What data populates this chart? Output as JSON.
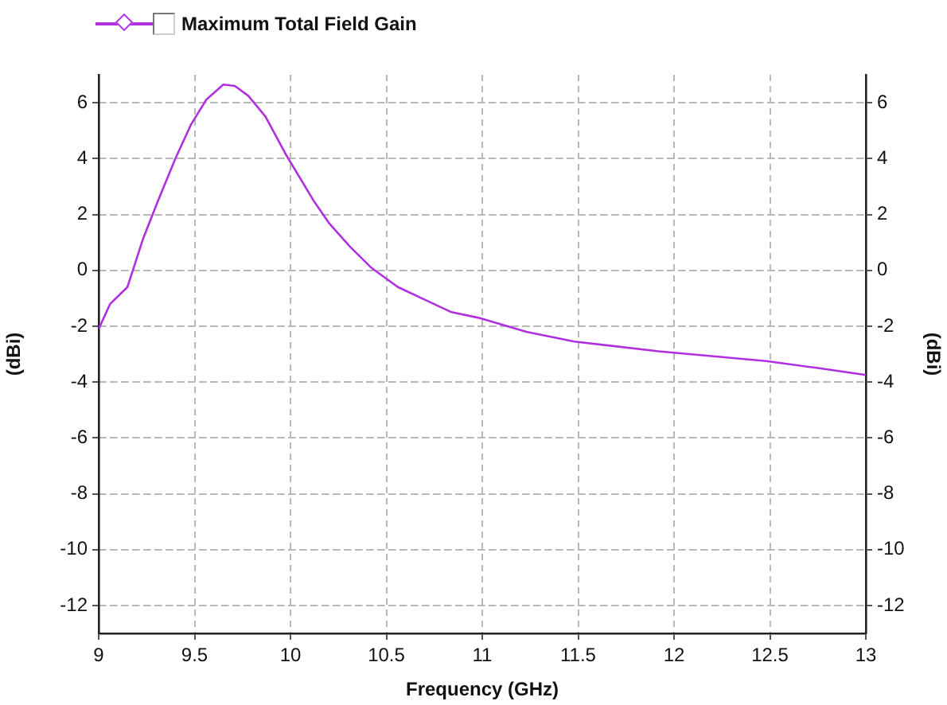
{
  "chart_data": {
    "type": "line",
    "xlabel": "Frequency (GHz)",
    "ylabel": "(dBi)",
    "y2label": "(dBi)",
    "series": [
      {
        "name": "Maximum Total Field Gain",
        "color": "#b030e0",
        "x": [
          9.0,
          9.06,
          9.15,
          9.23,
          9.31,
          9.4,
          9.48,
          9.56,
          9.65,
          9.71,
          9.78,
          9.87,
          9.98,
          10.12,
          10.2,
          10.31,
          10.42,
          10.56,
          10.7,
          10.84,
          10.98,
          11.23,
          11.48,
          11.92,
          12.48,
          12.75,
          12.95,
          13.0
        ],
        "values": [
          -2.1,
          -1.2,
          -0.6,
          1.1,
          2.5,
          4.0,
          5.2,
          6.1,
          6.65,
          6.6,
          6.25,
          5.5,
          4.1,
          2.5,
          1.7,
          0.85,
          0.1,
          -0.6,
          -1.05,
          -1.5,
          -1.7,
          -2.2,
          -2.55,
          -2.9,
          -3.25,
          -3.5,
          -3.7,
          -3.75
        ]
      }
    ],
    "xlim": [
      9,
      13
    ],
    "xticks": [
      9,
      9.5,
      10,
      10.5,
      11,
      11.5,
      12,
      12.5,
      13
    ],
    "ylim": [
      -13,
      7
    ],
    "yticks": [
      -12,
      -10,
      -8,
      -6,
      -4,
      -2,
      0,
      2,
      4,
      6
    ],
    "y2lim": [
      -13,
      7
    ],
    "y2ticks": [
      -12,
      -10,
      -8,
      -6,
      -4,
      -2,
      0,
      2,
      4,
      6
    ],
    "grid": true,
    "legend": "top left",
    "marker": "none",
    "line_style": "solid"
  }
}
